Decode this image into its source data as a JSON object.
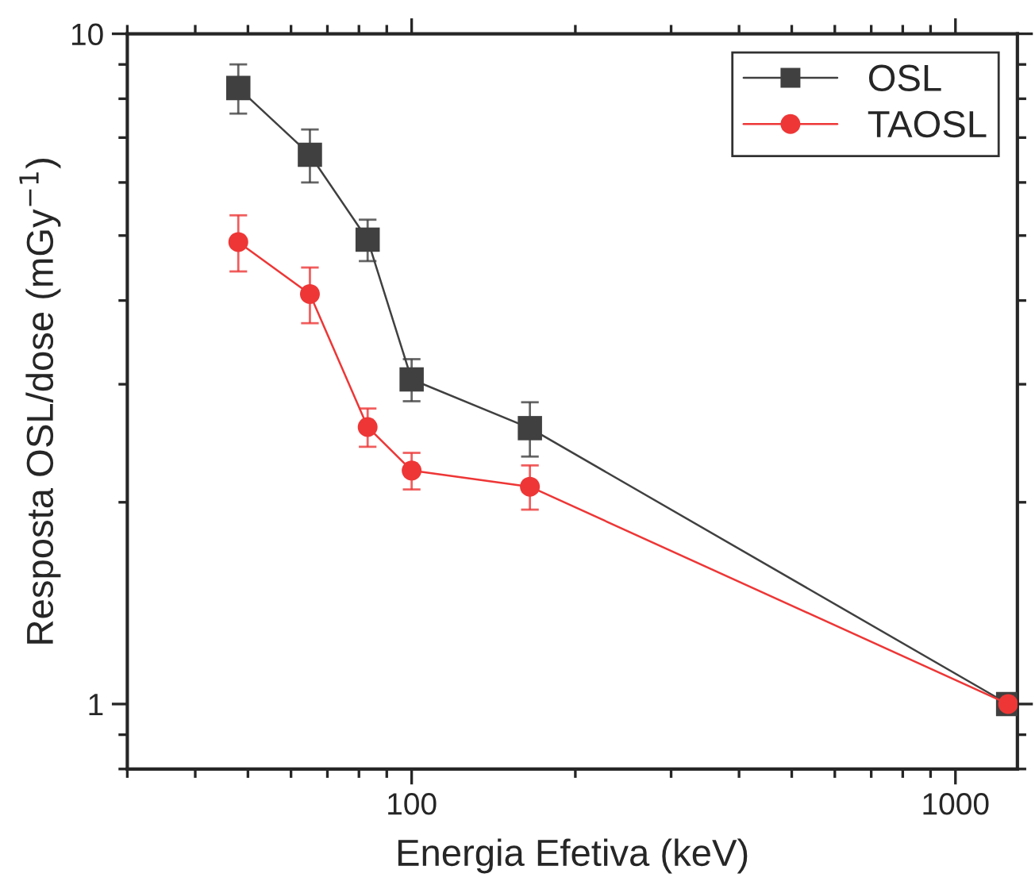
{
  "chart_data": {
    "type": "line",
    "xlabel": "Energia Efetiva (keV)",
    "ylabel": "Resposta OSL/dose (mGy$^{−1}$)",
    "x": [
      48,
      65,
      83,
      100,
      165,
      1250
    ],
    "series": [
      {
        "name": "OSL",
        "color": "#404040",
        "values": [
          8.3,
          6.6,
          4.93,
          3.05,
          2.58,
          1
        ],
        "errors": [
          0.7,
          0.6,
          0.35,
          0.22,
          0.24,
          null
        ],
        "marker": "square"
      },
      {
        "name": "TAOSL",
        "color": "#ee3636",
        "values": [
          4.89,
          4.09,
          2.59,
          2.23,
          2.11,
          1
        ],
        "errors": [
          0.47,
          0.39,
          0.17,
          0.14,
          0.16,
          null
        ],
        "marker": "circle"
      }
    ],
    "log": "xy",
    "xlim": [
      30,
      1300
    ],
    "ylim": [
      0.8,
      10
    ],
    "xticks": [
      100,
      1000
    ],
    "yticks": [
      1,
      10
    ],
    "grid": false,
    "legend": "top right",
    "line_style": "solid"
  }
}
